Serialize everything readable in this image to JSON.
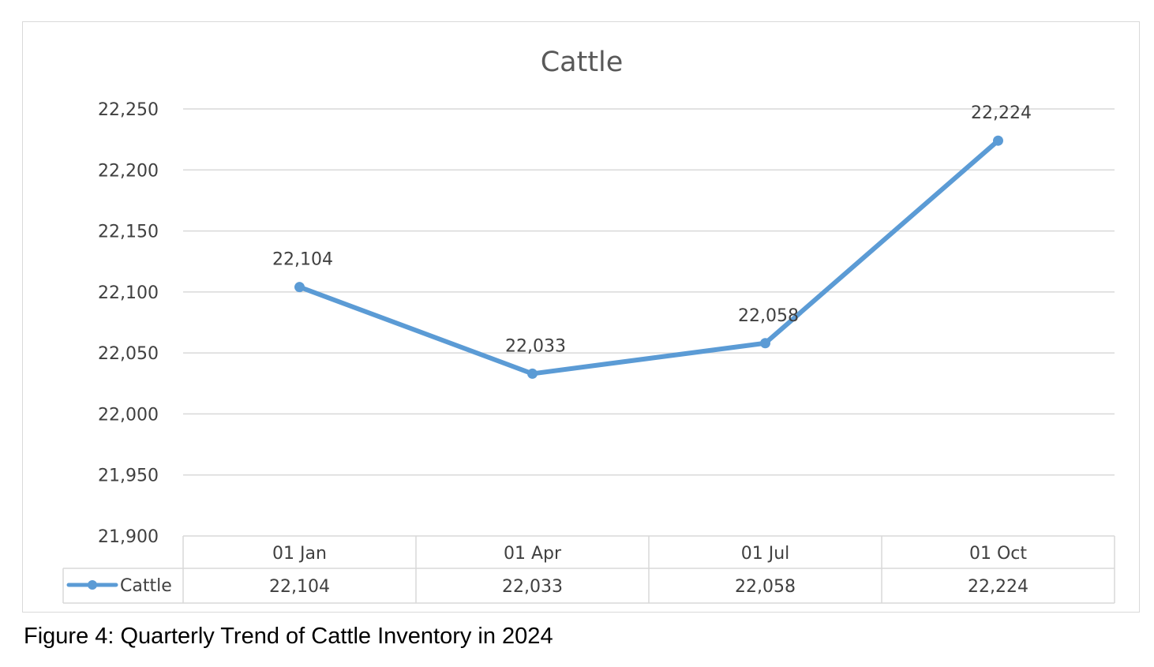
{
  "figure_caption": "Figure 4: Quarterly Trend of Cattle Inventory in 2024",
  "colors": {
    "series": "#5b9bd5",
    "gridline": "#d9d9d9",
    "text": "#404040",
    "title": "#595959"
  },
  "chart_data": {
    "type": "line",
    "title": "Cattle",
    "xlabel": "",
    "ylabel": "",
    "categories": [
      "01 Jan",
      "01 Apr",
      "01 Jul",
      "01 Oct"
    ],
    "series": [
      {
        "name": "Cattle",
        "values": [
          22104,
          22033,
          22058,
          22224
        ]
      }
    ],
    "data_labels": [
      "22,104",
      "22,033",
      "22,058",
      "22,224"
    ],
    "y_ticks": [
      "21,900",
      "21,950",
      "22,000",
      "22,050",
      "22,100",
      "22,150",
      "22,200",
      "22,250"
    ],
    "ylim": [
      21900,
      22250
    ],
    "grid": true,
    "legend": "data-table-below",
    "data_table": {
      "series_label": "Cattle",
      "values": [
        "22,104",
        "22,033",
        "22,058",
        "22,224"
      ]
    }
  }
}
